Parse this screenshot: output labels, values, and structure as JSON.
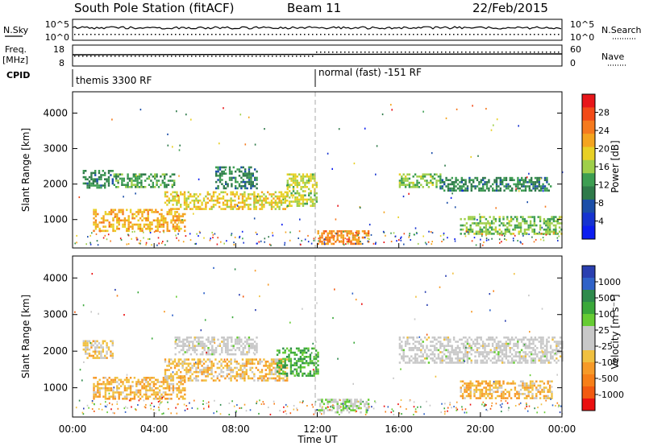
{
  "header": {
    "station": "South Pole Station (fitACF)",
    "beam": "Beam 11",
    "date": "22/Feb/2015"
  },
  "panels": {
    "nsky_label": "N.Sky",
    "nsky_ticks": [
      "10^5",
      "10^0"
    ],
    "nsearch_label": "N.Search",
    "nsearch_ticks": [
      "10^5",
      "10^0"
    ],
    "freq_label_1": "Freq.",
    "freq_label_2": "[MHz]",
    "freq_ticks": [
      "18",
      "8"
    ],
    "nave_label": "Nave",
    "nave_ticks": [
      "60",
      "0"
    ],
    "cpid_label": "CPID",
    "cpid_left": "themis 3300 RF",
    "cpid_right": "normal (fast) -151 RF"
  },
  "colorbars": {
    "power": {
      "label": "Power [dB]",
      "ticks": [
        "28",
        "24",
        "20",
        "16",
        "12",
        "8",
        "4"
      ],
      "colors": [
        "#e8161a",
        "#f24a18",
        "#f57a1e",
        "#f4a41f",
        "#e8d025",
        "#9fcf4a",
        "#3d9e52",
        "#2f7a4a",
        "#1b4ea8",
        "#1633d0",
        "#0c1df0"
      ]
    },
    "velocity": {
      "label": "Velocity [m s⁻¹]",
      "ticks": [
        "1000",
        "500",
        "100",
        "25",
        "-25",
        "-100",
        "-500",
        "-1000"
      ],
      "colors": [
        "#2a3fb0",
        "#2f62c8",
        "#2e8a4c",
        "#3aa83a",
        "#66cc33",
        "#c8c8c8",
        "#c8c8c8",
        "#f0c040",
        "#f79a28",
        "#f77f18",
        "#f25a10",
        "#ea1010"
      ]
    }
  },
  "xaxis": {
    "label": "Time UT",
    "ticks": [
      "00:00",
      "04:00",
      "08:00",
      "12:00",
      "16:00",
      "20:00",
      "00:00"
    ]
  },
  "chart_data": [
    {
      "type": "heatmap",
      "title": "Power",
      "ylabel": "Slant Range [km]",
      "xlabel": "Time UT",
      "x_range_hours": [
        0,
        24
      ],
      "ylim": [
        200,
        4600
      ],
      "yticks": [
        1000,
        2000,
        3000,
        4000
      ],
      "colorbar": "Power [dB]",
      "clim": [
        0,
        30
      ],
      "regions": [
        {
          "t0": 0.5,
          "t1": 2.0,
          "r0": 1900,
          "r1": 2400,
          "value": 10
        },
        {
          "t0": 1.0,
          "t1": 5.5,
          "r0": 700,
          "r1": 1300,
          "value": 20
        },
        {
          "t0": 2.0,
          "t1": 5.0,
          "r0": 1900,
          "r1": 2300,
          "value": 12
        },
        {
          "t0": 4.5,
          "t1": 10.5,
          "r0": 1300,
          "r1": 1800,
          "value": 18
        },
        {
          "t0": 7.0,
          "t1": 9.0,
          "r0": 1900,
          "r1": 2500,
          "value": 10
        },
        {
          "t0": 10.5,
          "t1": 12.0,
          "r0": 1400,
          "r1": 2300,
          "value": 16
        },
        {
          "t0": 12.0,
          "t1": 14.5,
          "r0": 300,
          "r1": 700,
          "value": 22
        },
        {
          "t0": 16.0,
          "t1": 18.0,
          "r0": 1900,
          "r1": 2300,
          "value": 14
        },
        {
          "t0": 18.0,
          "t1": 23.5,
          "r0": 1800,
          "r1": 2200,
          "value": 10
        },
        {
          "t0": 19.0,
          "t1": 24.0,
          "r0": 600,
          "r1": 1100,
          "value": 14
        }
      ]
    },
    {
      "type": "heatmap",
      "title": "Velocity",
      "ylabel": "Slant Range [km]",
      "xlabel": "Time UT",
      "x_range_hours": [
        0,
        24
      ],
      "ylim": [
        200,
        4600
      ],
      "yticks": [
        1000,
        2000,
        3000,
        4000
      ],
      "colorbar": "Velocity [m s⁻¹]",
      "clim": [
        -1000,
        1000
      ],
      "regions": [
        {
          "t0": 0.5,
          "t1": 2.0,
          "r0": 1800,
          "r1": 2300,
          "value": -200
        },
        {
          "t0": 1.0,
          "t1": 5.5,
          "r0": 700,
          "r1": 1300,
          "value": -300
        },
        {
          "t0": 4.5,
          "t1": 10.5,
          "r0": 1200,
          "r1": 1800,
          "value": -250
        },
        {
          "t0": 5.0,
          "t1": 9.0,
          "r0": 1900,
          "r1": 2400,
          "value": 0
        },
        {
          "t0": 10.0,
          "t1": 12.0,
          "r0": 1300,
          "r1": 2100,
          "value": 400
        },
        {
          "t0": 12.0,
          "t1": 14.5,
          "r0": 300,
          "r1": 700,
          "value": 150
        },
        {
          "t0": 16.0,
          "t1": 24.0,
          "r0": 1700,
          "r1": 2400,
          "value": 0
        },
        {
          "t0": 19.0,
          "t1": 23.5,
          "r0": 700,
          "r1": 1200,
          "value": -300
        }
      ]
    }
  ]
}
